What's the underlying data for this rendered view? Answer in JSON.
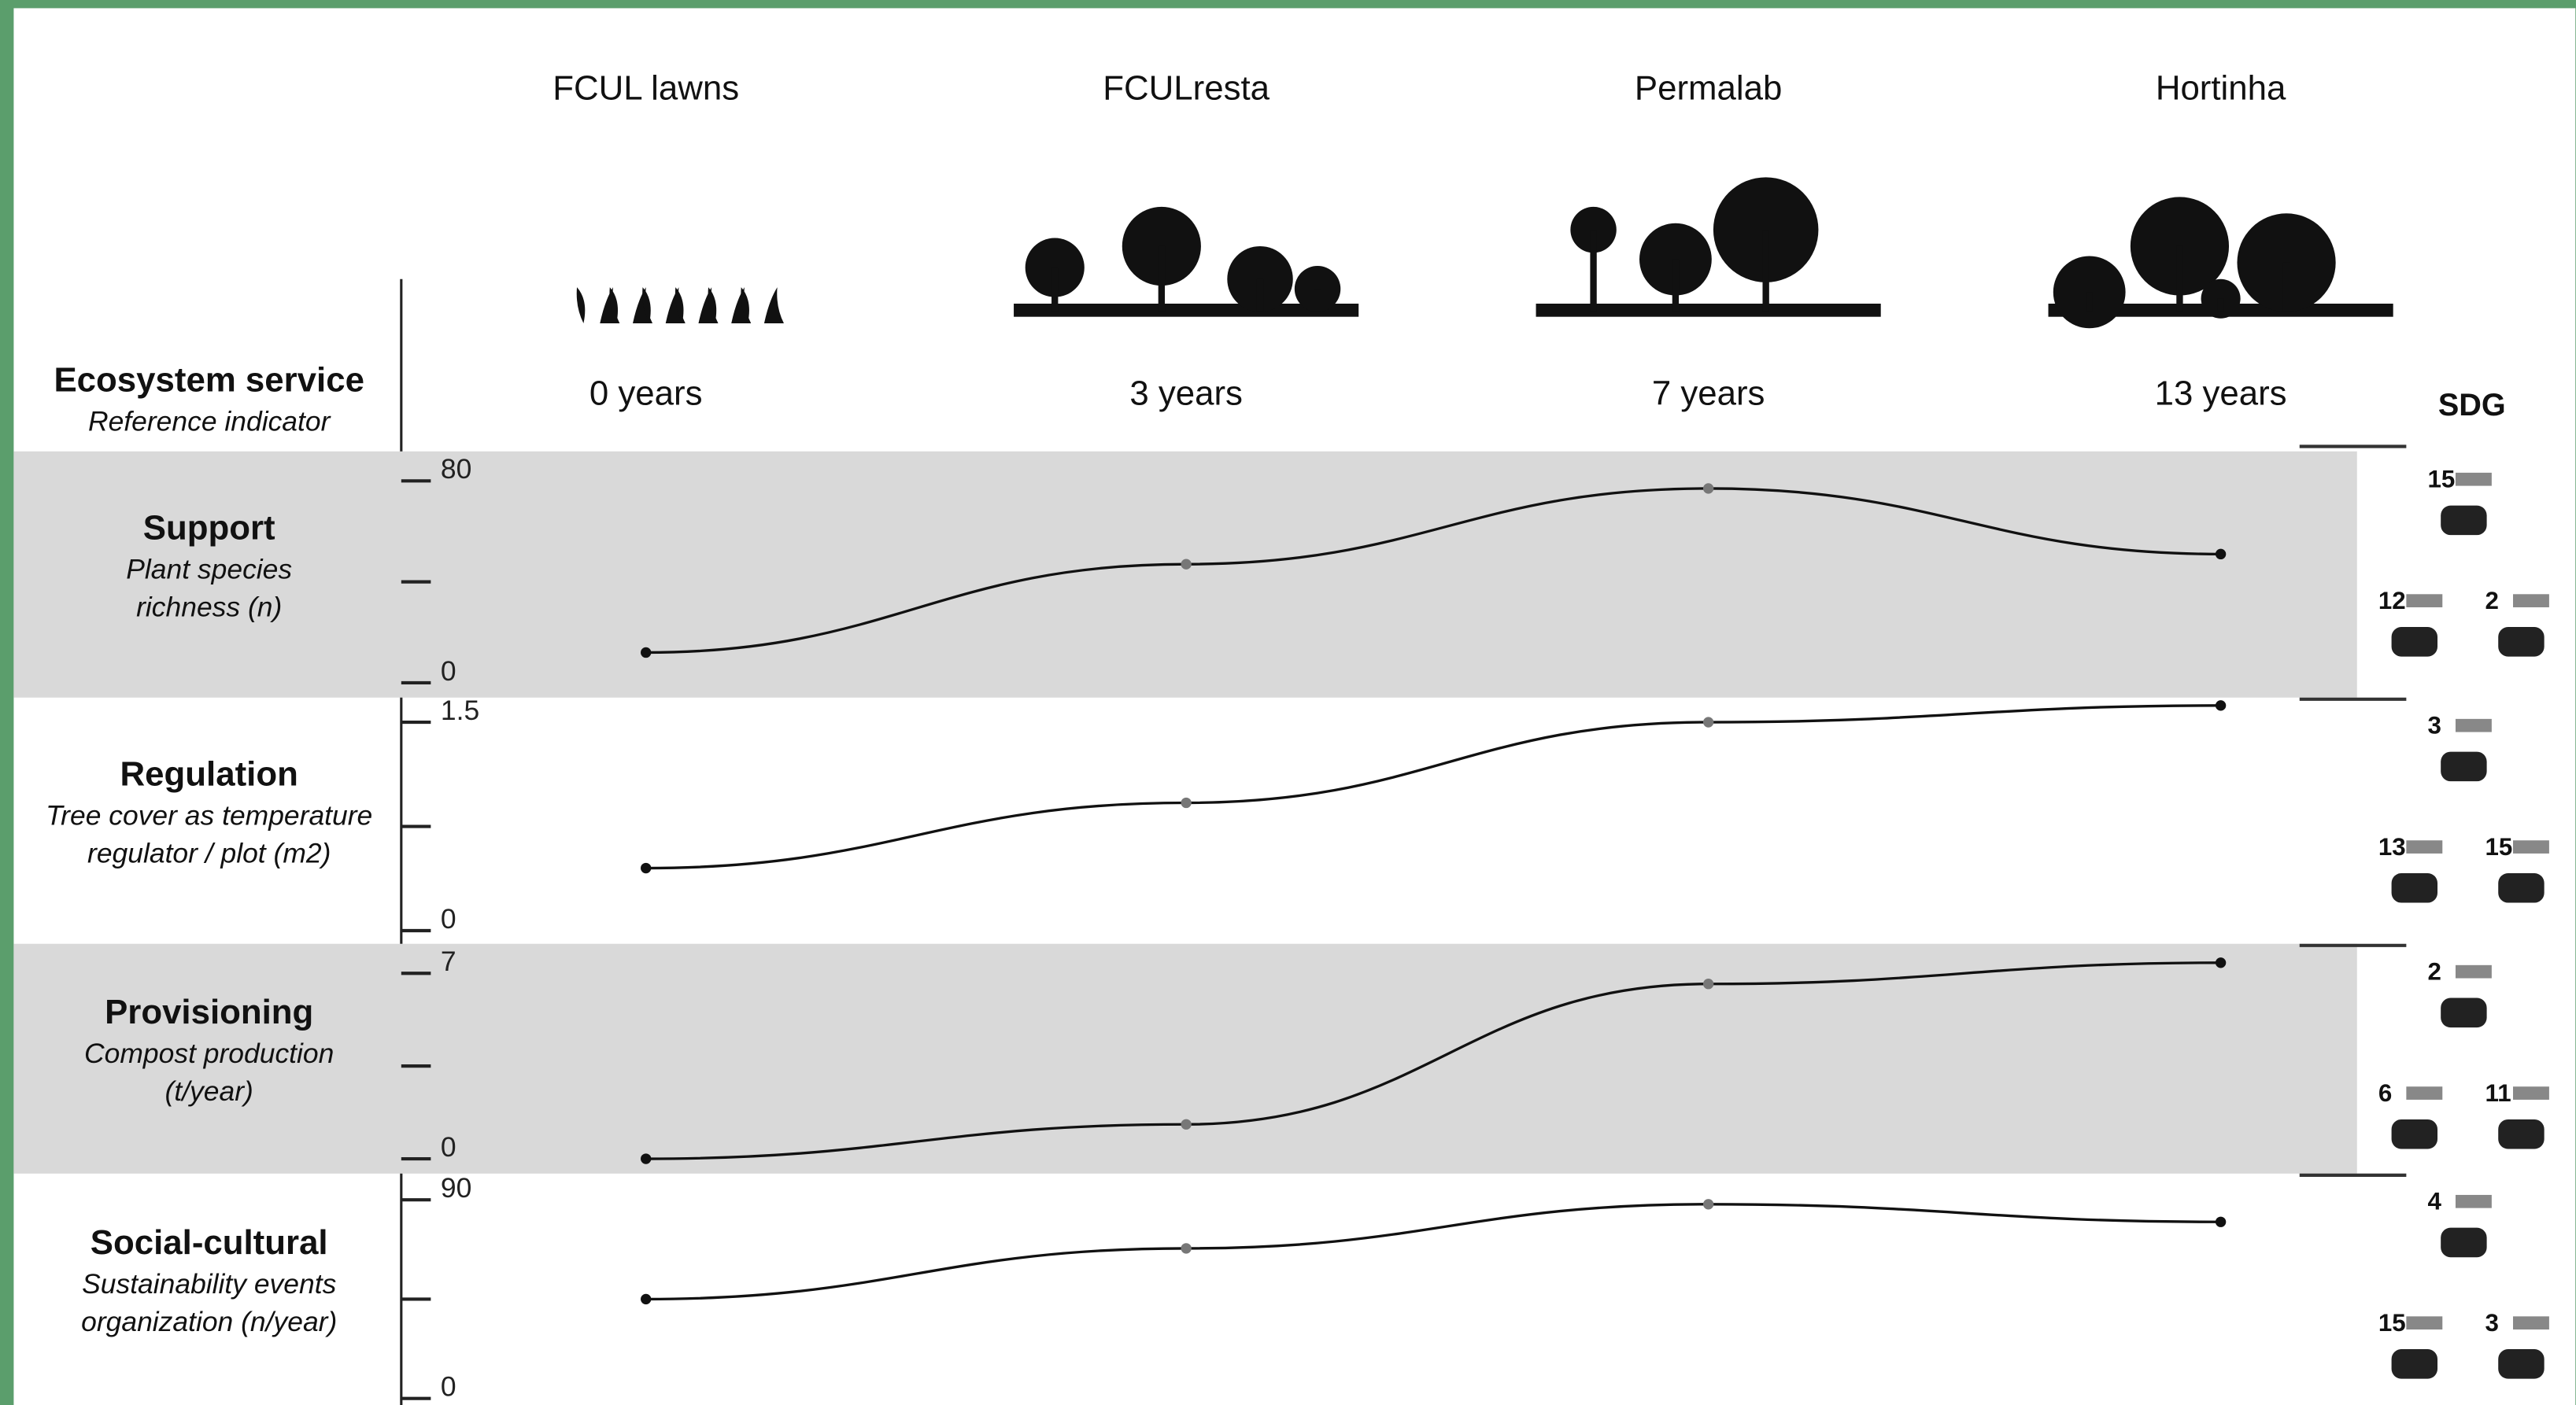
{
  "header": {
    "service_label": "Ecosystem service",
    "indicator_label": "Reference indicator",
    "sdg_label": "SDG"
  },
  "sites": [
    {
      "name": "FCUL lawns",
      "age": "0 years"
    },
    {
      "name": "FCULresta",
      "age": "3 years"
    },
    {
      "name": "Permalab",
      "age": "7 years"
    },
    {
      "name": "Hortinha",
      "age": "13 years"
    }
  ],
  "chart_data": [
    {
      "type": "line",
      "title": "Support",
      "subtitle": [
        "Plant species",
        "richness (n)"
      ],
      "values": [
        12,
        47,
        77,
        51
      ],
      "color": "#111111",
      "ylim": [
        0,
        80
      ],
      "yticks": [
        0,
        80
      ],
      "band": true,
      "sdgs": [
        "15",
        "12",
        "2"
      ]
    },
    {
      "type": "line",
      "title": "Regulation",
      "subtitle": [
        "Tree cover as temperature",
        "regulator / plot (m2)"
      ],
      "values": [
        0.45,
        0.92,
        1.5,
        1.62
      ],
      "color": "#111111",
      "ylim": [
        0,
        1.5
      ],
      "yticks": [
        0,
        1.5
      ],
      "band": false,
      "sdgs": [
        "3",
        "13",
        "15"
      ]
    },
    {
      "type": "line",
      "title": "Provisioning",
      "subtitle": [
        "Compost production",
        "(t/year)"
      ],
      "values": [
        0,
        1.3,
        6.6,
        7.4
      ],
      "color": "#111111",
      "ylim": [
        0,
        7
      ],
      "yticks": [
        0,
        7
      ],
      "band": true,
      "sdgs": [
        "2",
        "6",
        "11"
      ]
    },
    {
      "type": "line",
      "title": "Social-cultural",
      "subtitle": [
        "Sustainability events",
        "organization (n/year)"
      ],
      "values": [
        45,
        68,
        88,
        80
      ],
      "color": "#111111",
      "ylim": [
        0,
        90
      ],
      "yticks": [
        0,
        90
      ],
      "band": false,
      "sdgs": [
        "4",
        "15",
        "3"
      ]
    }
  ]
}
